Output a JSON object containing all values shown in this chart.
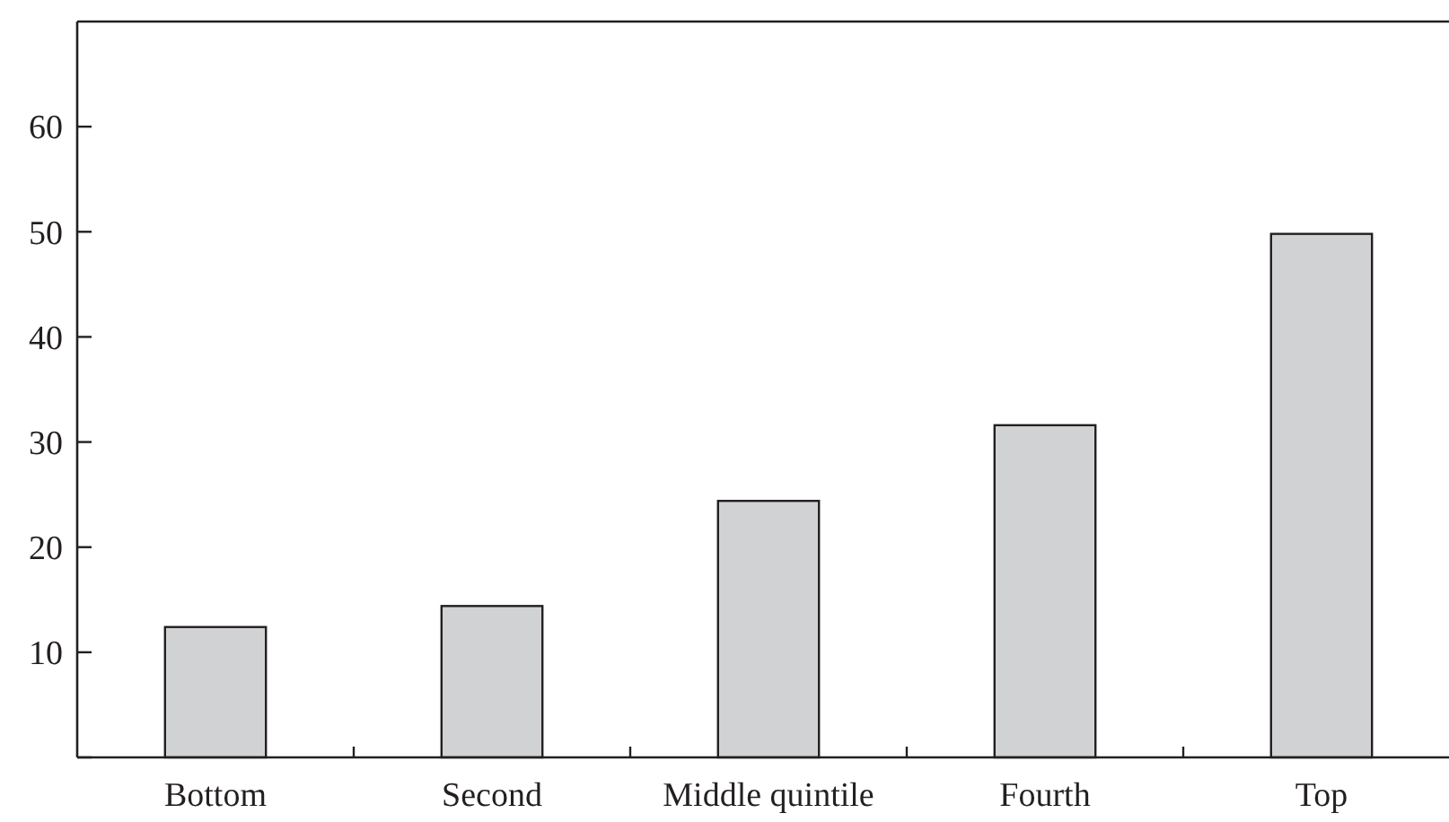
{
  "chart_data": {
    "type": "bar",
    "categories": [
      "Bottom",
      "Second",
      "Middle quintile",
      "Fourth",
      "Top"
    ],
    "values": [
      12.4,
      14.4,
      24.4,
      31.6,
      49.8
    ],
    "color": "#d1d2d4",
    "ylim": [
      0,
      70
    ],
    "yticks": [
      {
        "value": 0,
        "label": null
      },
      10,
      20,
      30,
      40,
      50,
      60
    ],
    "grid": false
  }
}
